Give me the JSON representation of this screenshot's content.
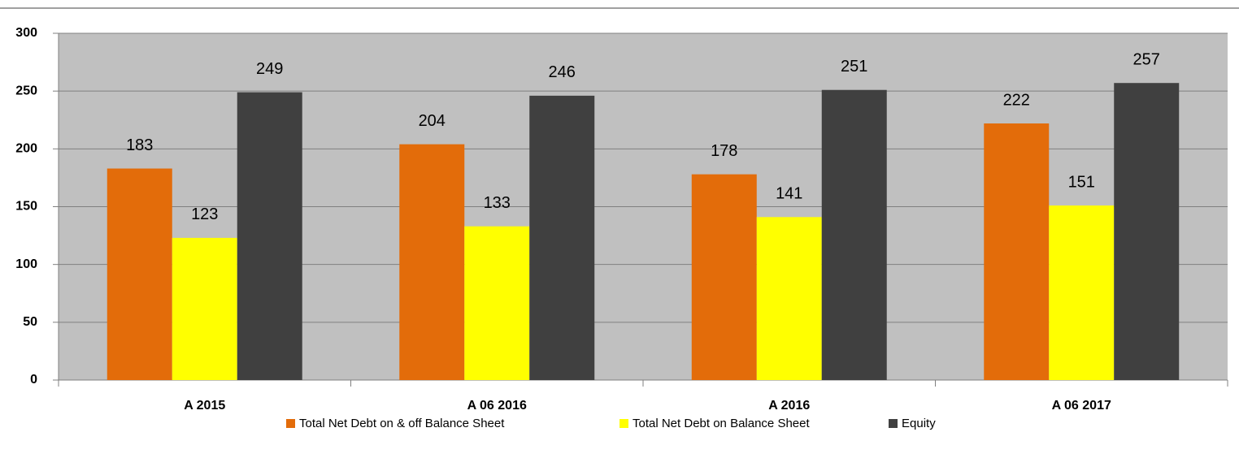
{
  "chart_data": {
    "type": "bar",
    "categories": [
      "A 2015",
      "A 06 2016",
      "A 2016",
      "A 06 2017"
    ],
    "series": [
      {
        "name": "Total Net Debt on & off Balance Sheet",
        "color": "#e36c0a",
        "values": [
          183,
          204,
          178,
          222
        ]
      },
      {
        "name": "Total Net Debt on Balance Sheet",
        "color": "#ffff00",
        "values": [
          123,
          133,
          141,
          151
        ]
      },
      {
        "name": "Equity",
        "color": "#404040",
        "values": [
          249,
          246,
          251,
          257
        ]
      }
    ],
    "ylim": [
      0,
      300
    ],
    "yticks": [
      0,
      50,
      100,
      150,
      200,
      250,
      300
    ],
    "grid": true,
    "legend": "bottom"
  }
}
